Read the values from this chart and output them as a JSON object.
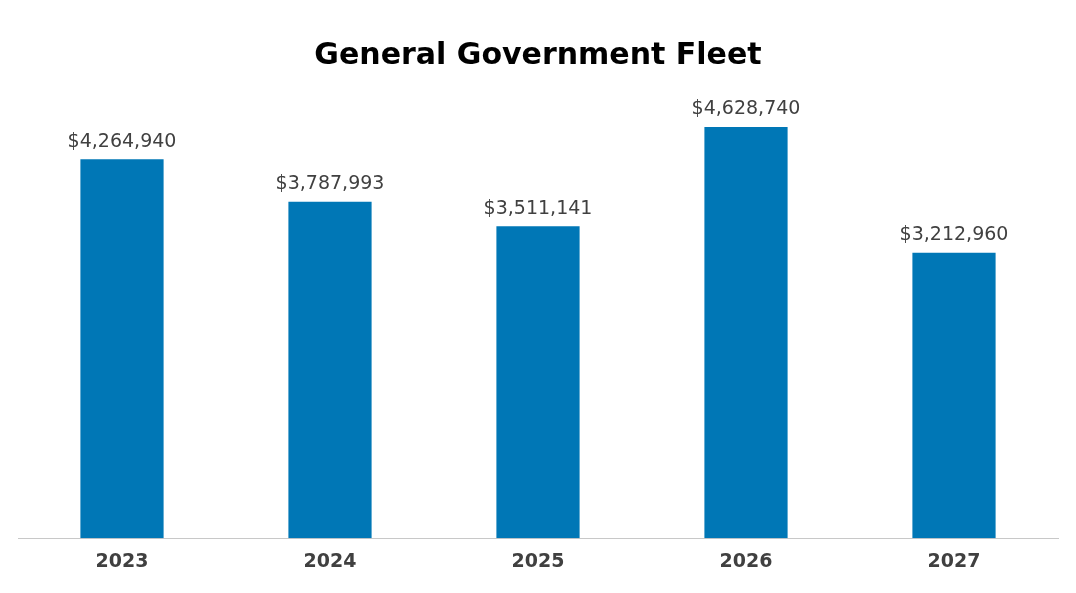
{
  "chart_data": {
    "type": "bar",
    "title": "General Government Fleet",
    "categories": [
      "2023",
      "2024",
      "2025",
      "2026",
      "2027"
    ],
    "values": [
      4264940,
      3787993,
      3511141,
      4628740,
      3212960
    ],
    "value_labels": [
      "$4,264,940",
      "$3,787,993",
      "$3,511,141",
      "$4,628,740",
      "$3,212,960"
    ],
    "color": "#0077b6",
    "grid": false,
    "legend": false
  }
}
